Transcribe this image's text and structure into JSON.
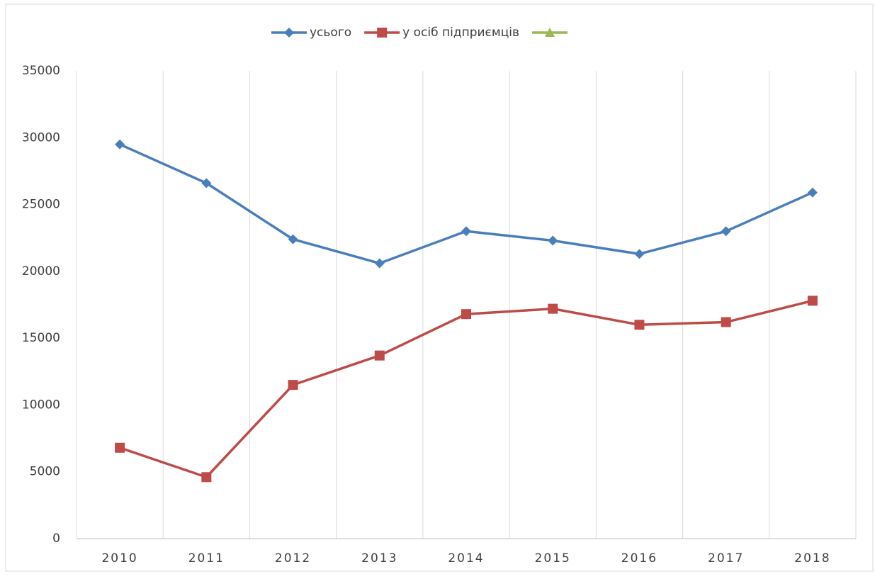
{
  "chart_data": {
    "type": "line",
    "categories": [
      "2010",
      "2011",
      "2012",
      "2013",
      "2014",
      "2015",
      "2016",
      "2017",
      "2018"
    ],
    "series": [
      {
        "name": "усього",
        "color": "#4a7ebb",
        "marker": "diamond",
        "values": [
          29500,
          26600,
          22400,
          20600,
          23000,
          22300,
          21300,
          23000,
          25900
        ]
      },
      {
        "name": "у осіб підприємців",
        "color": "#be4b48",
        "marker": "square",
        "values": [
          6800,
          4600,
          11500,
          13700,
          16800,
          17200,
          16000,
          16200,
          17800
        ]
      },
      {
        "color": "#98b954",
        "marker": "triangle",
        "values": [
          null,
          null,
          null,
          null,
          null,
          null,
          null,
          null,
          null
        ]
      }
    ],
    "ylim": [
      0,
      35000
    ],
    "yticks": [
      0,
      5000,
      10000,
      15000,
      20000,
      25000,
      30000,
      35000
    ],
    "legend": "top"
  }
}
